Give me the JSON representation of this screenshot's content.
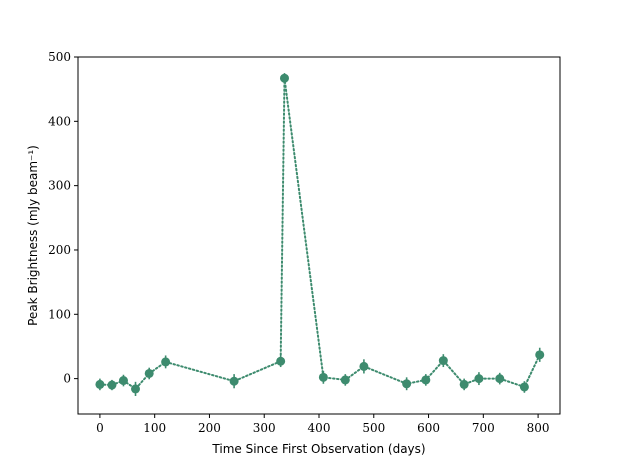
{
  "chart_data": {
    "type": "line",
    "title": "",
    "xlabel": "Time Since First Observation (days)",
    "ylabel": "Peak Brightness (mJy beam⁻¹)",
    "xlim": [
      -40,
      840
    ],
    "ylim": [
      -55,
      500
    ],
    "xticks": [
      0,
      100,
      200,
      300,
      400,
      500,
      600,
      700,
      800
    ],
    "yticks": [
      0,
      100,
      200,
      300,
      400,
      500
    ],
    "grid": false,
    "legend": "none",
    "series": [
      {
        "color": "#3d8b6e",
        "line_style": "dotted",
        "marker": "circle",
        "points": [
          {
            "x": 0,
            "y": -9,
            "err": 9
          },
          {
            "x": 22,
            "y": -10,
            "err": 8
          },
          {
            "x": 43,
            "y": -3,
            "err": 9
          },
          {
            "x": 65,
            "y": -16,
            "err": 11
          },
          {
            "x": 90,
            "y": 8,
            "err": 9
          },
          {
            "x": 120,
            "y": 26,
            "err": 10
          },
          {
            "x": 245,
            "y": -4,
            "err": 11
          },
          {
            "x": 330,
            "y": 27,
            "err": 9
          },
          {
            "x": 337,
            "y": 467,
            "err": 8
          },
          {
            "x": 408,
            "y": 2,
            "err": 10
          },
          {
            "x": 448,
            "y": -2,
            "err": 9
          },
          {
            "x": 482,
            "y": 19,
            "err": 11
          },
          {
            "x": 560,
            "y": -8,
            "err": 10
          },
          {
            "x": 595,
            "y": -2,
            "err": 9
          },
          {
            "x": 627,
            "y": 28,
            "err": 10
          },
          {
            "x": 665,
            "y": -9,
            "err": 9
          },
          {
            "x": 692,
            "y": 0,
            "err": 10
          },
          {
            "x": 730,
            "y": 0,
            "err": 9
          },
          {
            "x": 775,
            "y": -13,
            "err": 9
          },
          {
            "x": 803,
            "y": 37,
            "err": 11
          }
        ]
      }
    ]
  }
}
